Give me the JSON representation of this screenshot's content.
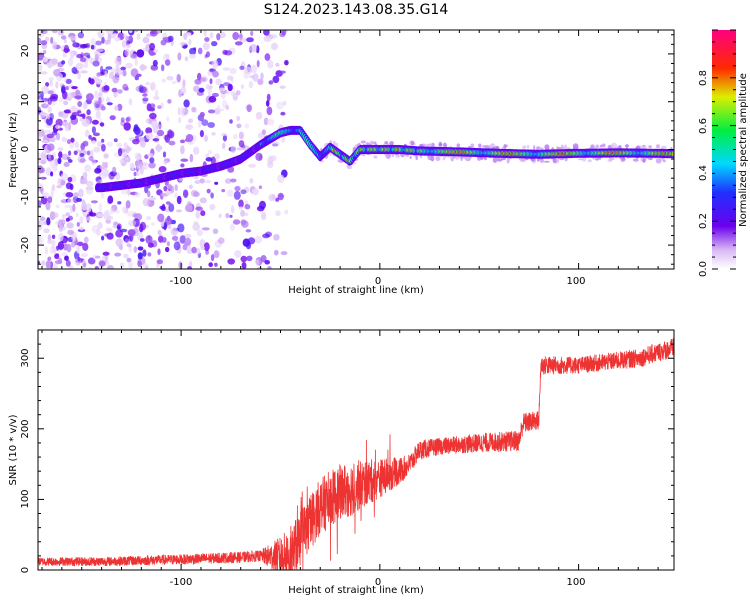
{
  "title": "S124.2023.143.08.35.G14",
  "colors": {
    "snr_line": "#ee3333",
    "noise_purple": "#8a2be2",
    "axis": "#000000"
  },
  "chart_data": [
    {
      "type": "heatmap",
      "xlabel": "Height of straight line (km)",
      "ylabel": "Frequency (Hz)",
      "xlim": [
        -172,
        148
      ],
      "ylim": [
        -25,
        25
      ],
      "xticks": [
        "-100",
        "0",
        "100"
      ],
      "yticks": [
        "-20",
        "-10",
        "0",
        "10",
        "20"
      ],
      "colorbar": {
        "label": "Normalized spectral amplitude",
        "range": [
          0.0,
          1.0
        ],
        "ticks": [
          "0.0",
          "0.2",
          "0.4",
          "0.6",
          "0.8"
        ],
        "colormap": "rainbow (white-violet-blue-cyan-green-yellow-red-pink)"
      },
      "ridge": {
        "description": "dominant frequency of the received signal vs height",
        "x": [
          -140,
          -130,
          -120,
          -110,
          -100,
          -90,
          -80,
          -70,
          -60,
          -50,
          -45,
          -40,
          -35,
          -30,
          -25,
          -20,
          -15,
          -10,
          -5,
          0,
          10,
          20,
          40,
          60,
          80,
          100,
          120,
          140,
          148
        ],
        "y": [
          -8,
          -7.5,
          -7,
          -6,
          -5,
          -4.5,
          -3.5,
          -2,
          1,
          3.5,
          4,
          4,
          1,
          -1.5,
          0.5,
          -1,
          -2.5,
          0,
          0,
          0,
          0,
          -0.3,
          -0.5,
          -0.8,
          -1,
          -0.8,
          -0.7,
          -0.8,
          -0.9
        ]
      }
    },
    {
      "type": "line",
      "xlabel": "Height of straight line (km)",
      "ylabel": "SNR (10 * v/v)",
      "xlim": [
        -172,
        148
      ],
      "ylim": [
        0,
        340
      ],
      "xticks": [
        "-100",
        "0",
        "100"
      ],
      "yticks": [
        "0",
        "100",
        "200",
        "300"
      ],
      "trend": {
        "x": [
          -172,
          -140,
          -100,
          -70,
          -60,
          -50,
          -45,
          -40,
          -30,
          -20,
          -10,
          0,
          10,
          15,
          20,
          30,
          50,
          70,
          72,
          80,
          81,
          100,
          130,
          148
        ],
        "y": [
          12,
          12,
          15,
          18,
          20,
          18,
          22,
          45,
          90,
          110,
          120,
          130,
          140,
          150,
          170,
          175,
          180,
          183,
          208,
          212,
          290,
          290,
          300,
          315
        ]
      },
      "noise_amplitude": {
        "x": [
          -172,
          -60,
          -45,
          -15,
          0,
          15,
          30,
          70,
          80,
          100,
          148
        ],
        "y": [
          6,
          8,
          40,
          40,
          28,
          15,
          12,
          15,
          14,
          12,
          14
        ]
      }
    }
  ]
}
